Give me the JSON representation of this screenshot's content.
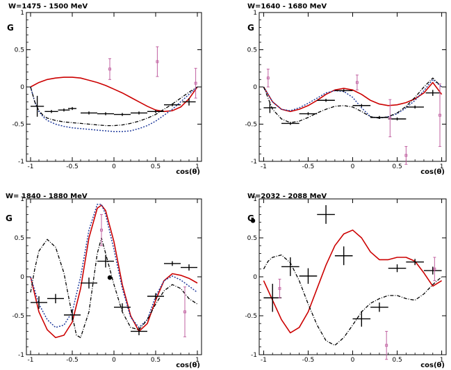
{
  "figure": {
    "ylabel": "G",
    "xlabel": "cos(θ)"
  },
  "colors": {
    "red": "#cc0000",
    "blue": "#1f3a9c",
    "black": "#000000",
    "magenta": "#c060a0"
  },
  "chart_data": [
    {
      "type": "scatter",
      "title": "W=1475 - 1500 MeV",
      "ylabel": "G",
      "xlabel": "cos(θ)",
      "xlim": [
        -1.05,
        1.05
      ],
      "ylim": [
        -1,
        1
      ],
      "xticks": [
        "-1",
        "-0.5",
        "0",
        "0.5",
        "1"
      ],
      "yticks": [
        "-1",
        "-0.5",
        "0",
        "0.5",
        "1"
      ],
      "black_points": [
        {
          "x": -0.92,
          "y": -0.26,
          "xerr": 0.08,
          "yerr": 0.14
        },
        {
          "x": -0.75,
          "y": -0.33,
          "xerr": 0.08,
          "yerr": 0.02
        },
        {
          "x": -0.6,
          "y": -0.31,
          "xerr": 0.07,
          "yerr": 0.02
        },
        {
          "x": -0.5,
          "y": -0.29,
          "xerr": 0.05,
          "yerr": 0.02
        },
        {
          "x": -0.3,
          "y": -0.35,
          "xerr": 0.1,
          "yerr": 0.02
        },
        {
          "x": -0.1,
          "y": -0.36,
          "xerr": 0.1,
          "yerr": 0.02
        },
        {
          "x": 0.1,
          "y": -0.37,
          "xerr": 0.1,
          "yerr": 0.02
        },
        {
          "x": 0.3,
          "y": -0.35,
          "xerr": 0.1,
          "yerr": 0.02
        },
        {
          "x": 0.5,
          "y": -0.33,
          "xerr": 0.1,
          "yerr": 0.02
        },
        {
          "x": 0.7,
          "y": -0.24,
          "xerr": 0.1,
          "yerr": 0.02
        },
        {
          "x": 0.9,
          "y": -0.2,
          "xerr": 0.08,
          "yerr": 0.05
        }
      ],
      "magenta_points": [
        {
          "x": -0.05,
          "y": 0.24,
          "yerr": 0.14
        },
        {
          "x": 0.52,
          "y": 0.34,
          "yerr": 0.2
        },
        {
          "x": 0.98,
          "y": 0.05,
          "yerr": 0.2
        }
      ],
      "curves": [
        {
          "style": "red-solid",
          "x": [
            -1,
            -0.9,
            -0.8,
            -0.7,
            -0.6,
            -0.5,
            -0.4,
            -0.3,
            -0.2,
            -0.1,
            0,
            0.1,
            0.2,
            0.3,
            0.4,
            0.5,
            0.6,
            0.7,
            0.8,
            0.9,
            1
          ],
          "y": [
            0,
            0.06,
            0.1,
            0.12,
            0.13,
            0.13,
            0.12,
            0.09,
            0.06,
            0.02,
            -0.03,
            -0.08,
            -0.14,
            -0.2,
            -0.26,
            -0.31,
            -0.33,
            -0.32,
            -0.27,
            -0.16,
            0
          ]
        },
        {
          "style": "blue-dotted",
          "x": [
            -1,
            -0.95,
            -0.9,
            -0.85,
            -0.8,
            -0.7,
            -0.6,
            -0.5,
            -0.4,
            -0.3,
            -0.2,
            -0.1,
            0,
            0.1,
            0.2,
            0.3,
            0.4,
            0.5,
            0.6,
            0.7,
            0.8,
            0.9,
            1
          ],
          "y": [
            0,
            -0.2,
            -0.33,
            -0.4,
            -0.45,
            -0.5,
            -0.53,
            -0.55,
            -0.56,
            -0.57,
            -0.58,
            -0.59,
            -0.6,
            -0.6,
            -0.59,
            -0.56,
            -0.52,
            -0.46,
            -0.38,
            -0.3,
            -0.2,
            -0.1,
            0
          ]
        },
        {
          "style": "black-dashdot",
          "x": [
            -1,
            -0.95,
            -0.9,
            -0.85,
            -0.8,
            -0.7,
            -0.6,
            -0.5,
            -0.4,
            -0.3,
            -0.2,
            -0.1,
            0,
            0.1,
            0.2,
            0.3,
            0.4,
            0.5,
            0.6,
            0.7,
            0.8,
            0.9,
            1
          ],
          "y": [
            0,
            -0.2,
            -0.32,
            -0.38,
            -0.42,
            -0.45,
            -0.47,
            -0.48,
            -0.49,
            -0.5,
            -0.51,
            -0.52,
            -0.52,
            -0.51,
            -0.49,
            -0.46,
            -0.42,
            -0.37,
            -0.3,
            -0.23,
            -0.15,
            -0.07,
            0
          ]
        }
      ]
    },
    {
      "type": "scatter",
      "title": "W=1640 - 1680 MeV",
      "ylabel": "G",
      "xlabel": "cos(θ)",
      "xlim": [
        -1.05,
        1.05
      ],
      "ylim": [
        -1,
        1
      ],
      "xticks": [
        "-1",
        "-0.5",
        "0",
        "0.5",
        "1"
      ],
      "yticks": [
        "-1",
        "-0.5",
        "0",
        "0.5",
        "1"
      ],
      "black_points": [
        {
          "x": -0.93,
          "y": -0.28,
          "xerr": 0.07,
          "yerr": 0.07
        },
        {
          "x": -0.7,
          "y": -0.49,
          "xerr": 0.1,
          "yerr": 0.02
        },
        {
          "x": -0.5,
          "y": -0.36,
          "xerr": 0.1,
          "yerr": 0.02
        },
        {
          "x": -0.3,
          "y": -0.18,
          "xerr": 0.1,
          "yerr": 0.02
        },
        {
          "x": -0.1,
          "y": -0.05,
          "xerr": 0.1,
          "yerr": 0.02
        },
        {
          "x": 0.1,
          "y": -0.25,
          "xerr": 0.1,
          "yerr": 0.02
        },
        {
          "x": 0.3,
          "y": -0.41,
          "xerr": 0.1,
          "yerr": 0.02
        },
        {
          "x": 0.5,
          "y": -0.43,
          "xerr": 0.1,
          "yerr": 0.02
        },
        {
          "x": 0.7,
          "y": -0.27,
          "xerr": 0.1,
          "yerr": 0.02
        },
        {
          "x": 0.9,
          "y": -0.08,
          "xerr": 0.08,
          "yerr": 0.04
        }
      ],
      "magenta_points": [
        {
          "x": -0.95,
          "y": 0.12,
          "yerr": 0.12
        },
        {
          "x": 0.05,
          "y": 0.06,
          "yerr": 0.1
        },
        {
          "x": 0.42,
          "y": -0.42,
          "yerr": 0.25
        },
        {
          "x": 0.6,
          "y": -0.92,
          "yerr": 0.12
        },
        {
          "x": 0.98,
          "y": -0.38,
          "yerr": 0.42
        }
      ],
      "curves": [
        {
          "style": "red-solid",
          "x": [
            -1,
            -0.9,
            -0.8,
            -0.7,
            -0.6,
            -0.5,
            -0.4,
            -0.3,
            -0.2,
            -0.1,
            0,
            0.1,
            0.2,
            0.3,
            0.4,
            0.5,
            0.6,
            0.7,
            0.8,
            0.9,
            1
          ],
          "y": [
            0,
            -0.2,
            -0.3,
            -0.33,
            -0.3,
            -0.25,
            -0.18,
            -0.1,
            -0.04,
            -0.02,
            -0.04,
            -0.1,
            -0.18,
            -0.23,
            -0.25,
            -0.24,
            -0.21,
            -0.16,
            -0.08,
            0.06,
            -0.1
          ]
        },
        {
          "style": "blue-dotted",
          "x": [
            -1,
            -0.9,
            -0.8,
            -0.7,
            -0.6,
            -0.5,
            -0.4,
            -0.3,
            -0.2,
            -0.1,
            0,
            0.1,
            0.2,
            0.3,
            0.4,
            0.5,
            0.6,
            0.7,
            0.8,
            0.9,
            1
          ],
          "y": [
            0,
            -0.2,
            -0.3,
            -0.32,
            -0.28,
            -0.22,
            -0.15,
            -0.08,
            -0.05,
            -0.06,
            -0.14,
            -0.28,
            -0.4,
            -0.42,
            -0.4,
            -0.36,
            -0.28,
            -0.18,
            -0.05,
            0.1,
            0
          ]
        },
        {
          "style": "black-dashdot",
          "x": [
            -1,
            -0.9,
            -0.8,
            -0.7,
            -0.6,
            -0.5,
            -0.4,
            -0.3,
            -0.2,
            -0.1,
            0,
            0.1,
            0.2,
            0.3,
            0.4,
            0.5,
            0.6,
            0.7,
            0.8,
            0.9,
            1
          ],
          "y": [
            0,
            -0.3,
            -0.43,
            -0.48,
            -0.46,
            -0.41,
            -0.35,
            -0.3,
            -0.26,
            -0.25,
            -0.27,
            -0.33,
            -0.4,
            -0.42,
            -0.4,
            -0.35,
            -0.26,
            -0.14,
            0,
            0.12,
            0
          ]
        }
      ]
    },
    {
      "type": "scatter",
      "title": "W= 1840 - 1880 MeV",
      "ylabel": "G",
      "xlabel": "cos(θ)",
      "xlim": [
        -1.05,
        1.05
      ],
      "ylim": [
        -1,
        1
      ],
      "xticks": [
        "-1",
        "-0.5",
        "0",
        "0.5",
        "1"
      ],
      "yticks": [
        "-1",
        "-0.5",
        "0",
        "0.5",
        "1"
      ],
      "black_points": [
        {
          "x": -0.9,
          "y": -0.33,
          "xerr": 0.1,
          "yerr": 0.08
        },
        {
          "x": -0.7,
          "y": -0.28,
          "xerr": 0.1,
          "yerr": 0.06
        },
        {
          "x": -0.5,
          "y": -0.49,
          "xerr": 0.1,
          "yerr": 0.07
        },
        {
          "x": -0.3,
          "y": -0.08,
          "xerr": 0.1,
          "yerr": 0.07
        },
        {
          "x": -0.1,
          "y": 0.2,
          "xerr": 0.1,
          "yerr": 0.08
        },
        {
          "x": 0.1,
          "y": -0.39,
          "xerr": 0.1,
          "yerr": 0.05
        },
        {
          "x": 0.3,
          "y": -0.7,
          "xerr": 0.1,
          "yerr": 0.05
        },
        {
          "x": 0.5,
          "y": -0.25,
          "xerr": 0.1,
          "yerr": 0.04
        },
        {
          "x": 0.7,
          "y": 0.17,
          "xerr": 0.1,
          "yerr": 0.03
        },
        {
          "x": 0.9,
          "y": 0.12,
          "xerr": 0.1,
          "yerr": 0.04
        }
      ],
      "magenta_points": [
        {
          "x": -0.15,
          "y": 0.6,
          "yerr": 0.2
        },
        {
          "x": 0.85,
          "y": -0.45,
          "yerr": 0.32
        }
      ],
      "dot_points": [
        {
          "x": -0.05,
          "y": -0.01
        }
      ],
      "curves": [
        {
          "style": "red-solid",
          "x": [
            -1,
            -0.9,
            -0.8,
            -0.7,
            -0.6,
            -0.5,
            -0.4,
            -0.3,
            -0.2,
            -0.15,
            -0.1,
            0,
            0.1,
            0.2,
            0.3,
            0.4,
            0.5,
            0.6,
            0.7,
            0.8,
            0.9,
            1
          ],
          "y": [
            0,
            -0.45,
            -0.68,
            -0.78,
            -0.75,
            -0.58,
            -0.15,
            0.5,
            0.88,
            0.92,
            0.85,
            0.45,
            -0.1,
            -0.5,
            -0.7,
            -0.6,
            -0.3,
            -0.05,
            0.04,
            0.02,
            -0.02,
            -0.08
          ]
        },
        {
          "style": "blue-dotted",
          "x": [
            -1,
            -0.9,
            -0.8,
            -0.7,
            -0.6,
            -0.5,
            -0.4,
            -0.3,
            -0.2,
            -0.15,
            -0.1,
            0,
            0.1,
            0.2,
            0.3,
            0.4,
            0.5,
            0.6,
            0.7,
            0.8,
            0.9,
            1
          ],
          "y": [
            0,
            -0.35,
            -0.55,
            -0.65,
            -0.62,
            -0.45,
            0,
            0.6,
            0.93,
            0.93,
            0.8,
            0.35,
            -0.15,
            -0.52,
            -0.65,
            -0.55,
            -0.25,
            -0.05,
            0.01,
            -0.04,
            -0.12,
            -0.2
          ]
        },
        {
          "style": "black-dashdot",
          "x": [
            -1,
            -0.95,
            -0.9,
            -0.8,
            -0.7,
            -0.6,
            -0.5,
            -0.45,
            -0.4,
            -0.3,
            -0.2,
            -0.15,
            -0.1,
            0,
            0.1,
            0.2,
            0.3,
            0.4,
            0.5,
            0.6,
            0.7,
            0.8,
            0.9,
            1
          ],
          "y": [
            -0.2,
            0.1,
            0.33,
            0.48,
            0.38,
            0.05,
            -0.5,
            -0.75,
            -0.78,
            -0.45,
            0.3,
            0.5,
            0.3,
            -0.1,
            -0.45,
            -0.65,
            -0.68,
            -0.55,
            -0.35,
            -0.18,
            -0.1,
            -0.15,
            -0.28,
            -0.35
          ]
        }
      ]
    },
    {
      "type": "scatter",
      "title": "W=2032 - 2088 MeV",
      "ylabel": "G",
      "xlabel": "cos(θ)",
      "xlim": [
        -1.05,
        1.05
      ],
      "ylim": [
        -1,
        1
      ],
      "xticks": [
        "-1",
        "-0.5",
        "0",
        "0.5",
        "1"
      ],
      "yticks": [
        "-1",
        "-0.5",
        "0",
        "0.5",
        "1"
      ],
      "black_points": [
        {
          "x": -0.9,
          "y": -0.27,
          "xerr": 0.1,
          "yerr": 0.18
        },
        {
          "x": -0.7,
          "y": 0.13,
          "xerr": 0.1,
          "yerr": 0.12
        },
        {
          "x": -0.5,
          "y": 0.01,
          "xerr": 0.1,
          "yerr": 0.1
        },
        {
          "x": -0.3,
          "y": 0.8,
          "xerr": 0.1,
          "yerr": 0.12
        },
        {
          "x": -0.1,
          "y": 0.27,
          "xerr": 0.1,
          "yerr": 0.12
        },
        {
          "x": 0.1,
          "y": -0.54,
          "xerr": 0.1,
          "yerr": 0.1
        },
        {
          "x": 0.3,
          "y": -0.39,
          "xerr": 0.1,
          "yerr": 0.06
        },
        {
          "x": 0.5,
          "y": 0.11,
          "xerr": 0.1,
          "yerr": 0.05
        },
        {
          "x": 0.7,
          "y": 0.19,
          "xerr": 0.1,
          "yerr": 0.04
        },
        {
          "x": 0.9,
          "y": 0.08,
          "xerr": 0.1,
          "yerr": 0.05
        }
      ],
      "magenta_points": [
        {
          "x": -0.82,
          "y": -0.15,
          "yerr": 0.12
        },
        {
          "x": 0.38,
          "y": -0.88,
          "yerr": 0.18
        },
        {
          "x": 0.92,
          "y": 0.1,
          "yerr": 0.15
        }
      ],
      "dot_points": [
        {
          "x": -1.12,
          "y": 0.72
        }
      ],
      "curves": [
        {
          "style": "red-solid",
          "x": [
            -1,
            -0.9,
            -0.8,
            -0.7,
            -0.6,
            -0.5,
            -0.4,
            -0.3,
            -0.2,
            -0.1,
            0,
            0.1,
            0.2,
            0.3,
            0.4,
            0.5,
            0.6,
            0.7,
            0.8,
            0.9,
            1
          ],
          "y": [
            -0.05,
            -0.3,
            -0.55,
            -0.72,
            -0.65,
            -0.45,
            -0.15,
            0.15,
            0.4,
            0.55,
            0.6,
            0.5,
            0.32,
            0.22,
            0.22,
            0.25,
            0.25,
            0.2,
            0.05,
            -0.12,
            -0.05
          ]
        },
        {
          "style": "black-dashdot",
          "x": [
            -1,
            -0.95,
            -0.9,
            -0.8,
            -0.7,
            -0.6,
            -0.5,
            -0.4,
            -0.3,
            -0.2,
            -0.1,
            0,
            0.1,
            0.2,
            0.3,
            0.4,
            0.5,
            0.6,
            0.7,
            0.8,
            0.9,
            0.95,
            1
          ],
          "y": [
            0.1,
            0.2,
            0.25,
            0.28,
            0.18,
            -0.05,
            -0.35,
            -0.62,
            -0.82,
            -0.88,
            -0.78,
            -0.62,
            -0.45,
            -0.34,
            -0.28,
            -0.24,
            -0.24,
            -0.28,
            -0.3,
            -0.22,
            -0.1,
            -0.05,
            0
          ]
        }
      ]
    }
  ]
}
